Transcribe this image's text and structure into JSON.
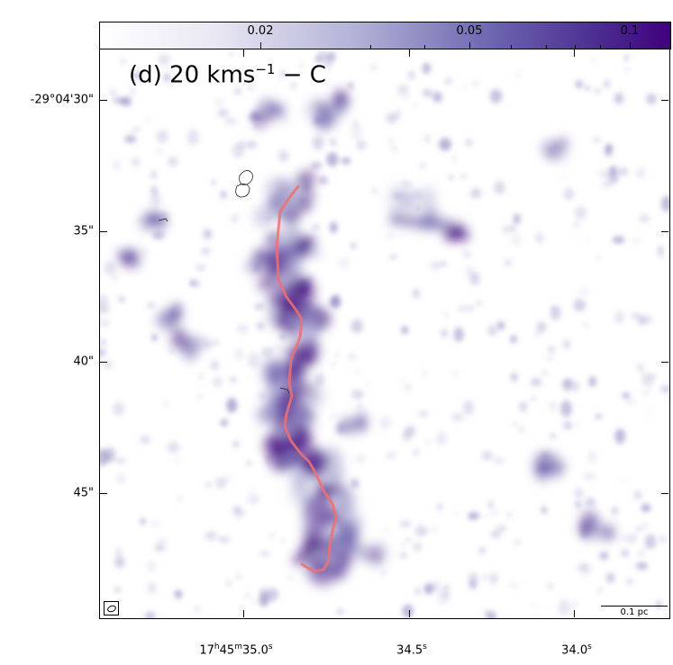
{
  "colorbar": {
    "labels": [
      "0.02",
      "0.05",
      "0.1"
    ],
    "colors": [
      "#ffffff",
      "#b3b1d6",
      "#6a61ad",
      "#3f007d"
    ]
  },
  "panel": {
    "title_main": "(d) 20 kms",
    "title_sup": "−1",
    "title_tail": " − C"
  },
  "dec_axis": {
    "labels": [
      "-29°04'30\"",
      "35\"",
      "40\"",
      "45\""
    ]
  },
  "ra_axis": {
    "labels": [
      {
        "main": "17",
        "h": "h",
        "mid": "45",
        "m": "m",
        "sec": "35.0",
        "s": "s"
      },
      {
        "main": "34.5",
        "s": "s"
      },
      {
        "main": "34.0",
        "s": "s"
      }
    ]
  },
  "scalebar": {
    "label": "0.1 pc"
  },
  "filament": {
    "color": "#f07070"
  }
}
